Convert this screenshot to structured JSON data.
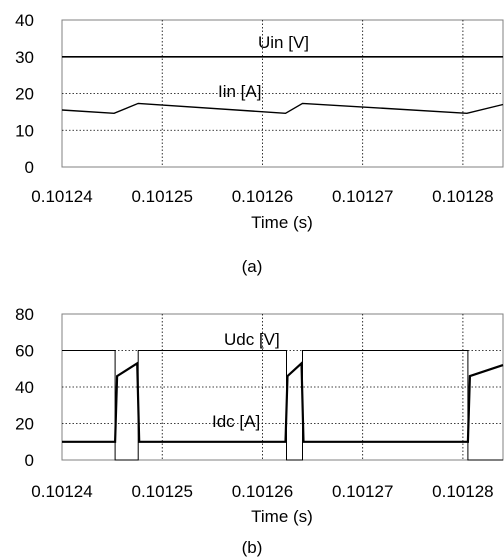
{
  "chart_data": [
    {
      "type": "line",
      "caption": "(a)",
      "xlabel": "Time (s)",
      "ylabel": "",
      "xlim": [
        0.10124,
        0.101284
      ],
      "ylim": [
        0,
        40
      ],
      "xticks": [
        "0.10124",
        "0.10125",
        "0.10126",
        "0.10127",
        "0.10128"
      ],
      "xtick_values": [
        0.10124,
        0.10125,
        0.10126,
        0.10127,
        0.10128
      ],
      "yticks": [
        0,
        10,
        20,
        30,
        40
      ],
      "grid": true,
      "annotations": [
        "Uin [V]",
        "Iin [A]"
      ],
      "series": [
        {
          "name": "Uin [V]",
          "x": [
            0.10124,
            0.101284
          ],
          "y": [
            30,
            30
          ]
        },
        {
          "name": "Iin [A]",
          "x": [
            0.10124,
            0.1012452,
            0.1012476,
            0.1012623,
            0.101264,
            0.1012804,
            0.101284
          ],
          "y": [
            15.5,
            14.6,
            17.3,
            14.6,
            17.3,
            14.6,
            17.0
          ]
        }
      ]
    },
    {
      "type": "line",
      "caption": "(b)",
      "xlabel": "Time (s)",
      "ylabel": "",
      "xlim": [
        0.10124,
        0.101284
      ],
      "ylim": [
        0,
        80
      ],
      "xticks": [
        "0.10124",
        "0.10125",
        "0.10126",
        "0.10127",
        "0.10128"
      ],
      "xtick_values": [
        0.10124,
        0.10125,
        0.10126,
        0.10127,
        0.10128
      ],
      "yticks": [
        0,
        20,
        40,
        60,
        80
      ],
      "grid": true,
      "annotations": [
        "Udc [V]",
        "Idc [A]"
      ],
      "series": [
        {
          "name": "Udc [V]",
          "x": [
            0.10124,
            0.1012453,
            0.1012453,
            0.1012476,
            0.1012476,
            0.1012624,
            0.1012624,
            0.101264,
            0.101264,
            0.1012805,
            0.1012805,
            0.101284
          ],
          "y": [
            60,
            60,
            0,
            0,
            60,
            60,
            0,
            0,
            60,
            60,
            0,
            0
          ]
        },
        {
          "name": "Idc [A]",
          "x": [
            0.10124,
            0.1012453,
            0.1012455,
            0.1012475,
            0.1012477,
            0.1012623,
            0.1012625,
            0.1012639,
            0.1012641,
            0.1012805,
            0.1012807,
            0.101284
          ],
          "y": [
            10,
            10,
            46,
            53,
            10,
            10,
            46,
            53,
            10,
            10,
            46,
            52
          ]
        }
      ]
    }
  ]
}
